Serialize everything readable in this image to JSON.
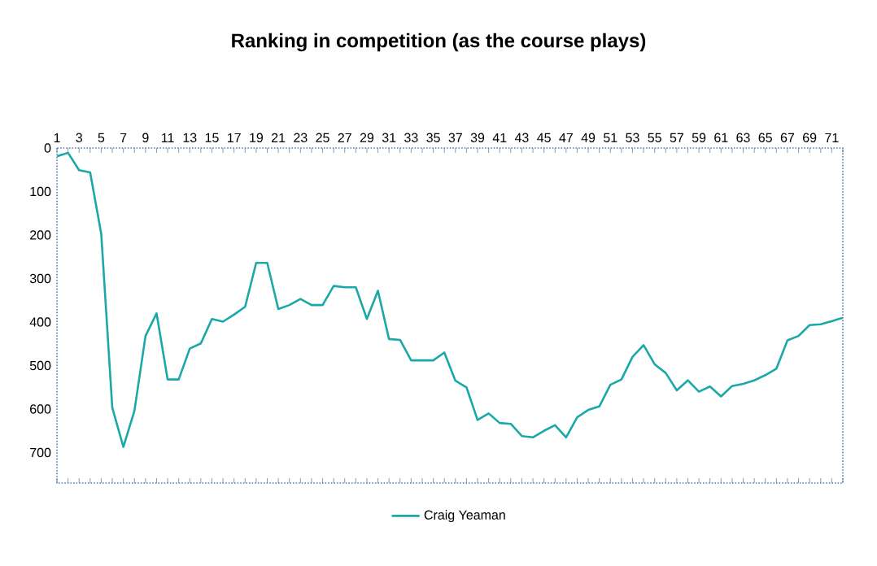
{
  "chart_data": {
    "type": "line",
    "title": "Ranking in competition (as the course plays)",
    "categories": [
      "1",
      null,
      "3",
      null,
      "5",
      null,
      "7",
      null,
      "9",
      null,
      "11",
      null,
      "13",
      null,
      "15",
      null,
      "17",
      null,
      "19",
      null,
      "21",
      null,
      "23",
      null,
      "25",
      null,
      "27",
      null,
      "29",
      null,
      "31",
      null,
      "33",
      null,
      "35",
      null,
      "37",
      null,
      "39",
      null,
      "41",
      null,
      "43",
      null,
      "45",
      null,
      "47",
      null,
      "49",
      null,
      "51",
      null,
      "53",
      null,
      "55",
      null,
      "57",
      null,
      "59",
      null,
      "61",
      null,
      "63",
      null,
      "65",
      null,
      "67",
      null,
      "69",
      null,
      "71",
      null
    ],
    "series": [
      {
        "name": "Craig Yeaman",
        "color": "#1aa8a8",
        "values": [
          19,
          11,
          51,
          56,
          197,
          597,
          687,
          604,
          432,
          380,
          532,
          532,
          461,
          449,
          393,
          399,
          383,
          365,
          264,
          264,
          370,
          361,
          347,
          361,
          361,
          317,
          320,
          320,
          393,
          328,
          439,
          441,
          488,
          488,
          488,
          470,
          535,
          550,
          625,
          610,
          632,
          634,
          662,
          665,
          650,
          637,
          665,
          619,
          602,
          594,
          544,
          532,
          480,
          453,
          497,
          517,
          557,
          534,
          560,
          548,
          571,
          547,
          542,
          534,
          522,
          507,
          442,
          432,
          407,
          405,
          398,
          390
        ]
      }
    ],
    "ylim": [
      770,
      0
    ],
    "yticks": [
      0,
      100,
      200,
      300,
      400,
      500,
      600,
      700
    ],
    "grid": false,
    "legend": "bottom",
    "line_style": "solid",
    "marker": "none"
  }
}
